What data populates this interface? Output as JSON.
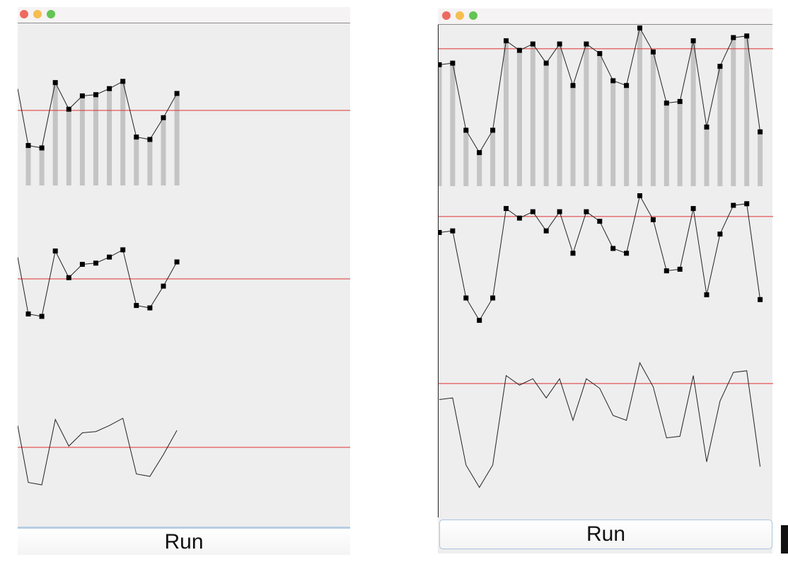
{
  "windows": [
    {
      "id": "left",
      "traffic_lights": {
        "close": "#ee6a5f",
        "minimize": "#f5be4f",
        "maximize": "#62c554"
      },
      "run_button_label": "Run",
      "values": [
        0.8,
        0.33,
        0.31,
        0.85,
        0.63,
        0.74,
        0.75,
        0.8,
        0.86,
        0.4,
        0.38,
        0.56,
        0.76
      ]
    },
    {
      "id": "right",
      "traffic_lights": {
        "close": "#ee6a5f",
        "minimize": "#f5be4f",
        "maximize": "#62c554"
      },
      "run_button_label": "Run",
      "values": [
        0.76,
        0.77,
        0.35,
        0.21,
        0.35,
        0.91,
        0.85,
        0.89,
        0.77,
        0.89,
        0.63,
        0.89,
        0.83,
        0.66,
        0.63,
        0.99,
        0.84,
        0.52,
        0.53,
        0.91,
        0.37,
        0.75,
        0.93,
        0.94,
        0.34
      ]
    }
  ],
  "chart_data": [
    {
      "type": "bar",
      "window": "left",
      "ylim": [
        0,
        1
      ],
      "reference_line": 0.62,
      "values": [
        0.8,
        0.33,
        0.31,
        0.85,
        0.63,
        0.74,
        0.75,
        0.8,
        0.86,
        0.4,
        0.38,
        0.56,
        0.76
      ],
      "panels": [
        "bars-with-line-and-markers",
        "line-with-markers",
        "line"
      ],
      "colors": {
        "bar": "#c4c4c4",
        "line": "#222222",
        "marker": "#000000",
        "reference": "#e03030"
      }
    },
    {
      "type": "bar",
      "window": "right",
      "ylim": [
        0,
        1
      ],
      "reference_line": 0.86,
      "values": [
        0.76,
        0.77,
        0.35,
        0.21,
        0.35,
        0.91,
        0.85,
        0.89,
        0.77,
        0.89,
        0.63,
        0.89,
        0.83,
        0.66,
        0.63,
        0.99,
        0.84,
        0.52,
        0.53,
        0.91,
        0.37,
        0.75,
        0.93,
        0.94,
        0.34
      ],
      "panels": [
        "bars-with-line-and-markers",
        "line-with-markers",
        "line"
      ],
      "colors": {
        "bar": "#c4c4c4",
        "line": "#222222",
        "marker": "#000000",
        "reference": "#e03030"
      }
    }
  ]
}
